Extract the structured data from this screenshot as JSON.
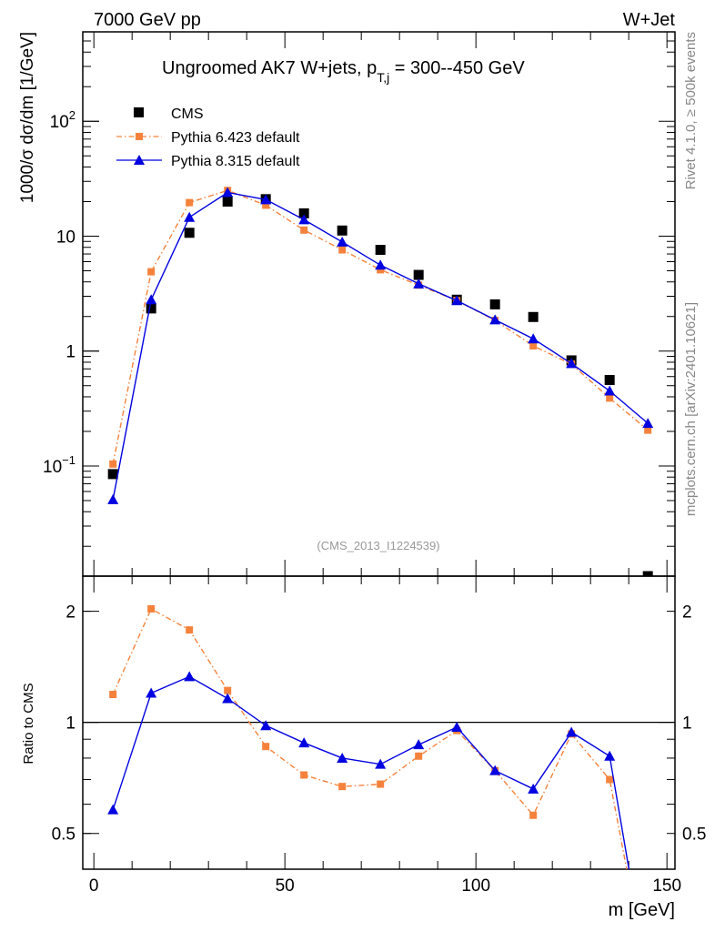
{
  "header": {
    "left": "7000 GeV pp",
    "right": "W+Jet"
  },
  "side_texts": {
    "rivet": "Rivet 4.1.0, ≥ 500k events",
    "mcplots": "mcplots.cern.ch [arXiv:2401.10621]"
  },
  "watermark": "(CMS_2013_I1224539)",
  "colors": {
    "cms": "#000000",
    "p6": "#f5823c",
    "p8": "#0000e0"
  },
  "chart_data": [
    {
      "type": "line",
      "panel": "main",
      "title": "Ungroomed AK7 W+jets, p",
      "title_sub": "T,j",
      "title_tail": " = 300--450 GeV",
      "ylabel": "1000/σ  dσ/dm [1/GeV]",
      "yscale": "log",
      "ylim": [
        0.011,
        600
      ],
      "xlim": [
        -2.9,
        152.1
      ],
      "yticks": [
        {
          "v": 0.1,
          "label": "10",
          "exp": "−1"
        },
        {
          "v": 1,
          "label": "1"
        },
        {
          "v": 10,
          "label": "10"
        },
        {
          "v": 100,
          "label": "10",
          "exp": "2"
        }
      ],
      "x": [
        5,
        15,
        25,
        35,
        45,
        55,
        65,
        75,
        85,
        95,
        105,
        115,
        125,
        135,
        145
      ],
      "legend_position": "top-left",
      "series": [
        {
          "name": "CMS",
          "key": "cms",
          "marker": "square",
          "values": [
            0.085,
            2.35,
            10.7,
            20,
            21,
            15.8,
            11.2,
            7.6,
            4.6,
            2.8,
            2.55,
            1.98,
            0.83,
            0.56,
            0.011
          ]
        },
        {
          "name": "Pythia 6.423 default",
          "key": "p6",
          "marker": "square",
          "line": "dashdot",
          "values": [
            0.104,
            4.9,
            19.6,
            25,
            18.6,
            11.3,
            7.6,
            5.1,
            3.75,
            2.75,
            1.85,
            1.11,
            0.77,
            0.39,
            0.205
          ]
        },
        {
          "name": "Pythia 8.315 default",
          "key": "p8",
          "marker": "triangle",
          "line": "solid",
          "values": [
            0.051,
            2.8,
            14.6,
            24,
            20.8,
            13.9,
            8.9,
            5.6,
            3.85,
            2.75,
            1.87,
            1.28,
            0.78,
            0.45,
            0.235
          ]
        }
      ]
    },
    {
      "type": "line",
      "panel": "ratio",
      "ylabel": "Ratio to CMS",
      "xlabel": "m [GeV]",
      "yscale": "log",
      "ylim": [
        0.4,
        2.49
      ],
      "xlim": [
        -2.9,
        152.1
      ],
      "yticks": [
        {
          "v": 0.5,
          "label": "0.5"
        },
        {
          "v": 1,
          "label": "1"
        },
        {
          "v": 2,
          "label": "2"
        }
      ],
      "xticks": [
        {
          "v": 0,
          "label": "0"
        },
        {
          "v": 50,
          "label": "50"
        },
        {
          "v": 100,
          "label": "100"
        },
        {
          "v": 150,
          "label": "150"
        }
      ],
      "x": [
        5,
        15,
        25,
        35,
        45,
        55,
        65,
        75,
        85,
        95,
        105,
        115,
        125,
        135,
        145
      ],
      "series": [
        {
          "name": "Pythia 6.423 default",
          "key": "p6",
          "values": [
            1.19,
            2.03,
            1.78,
            1.22,
            0.86,
            0.72,
            0.67,
            0.68,
            0.81,
            0.95,
            0.74,
            0.56,
            0.93,
            0.7,
            0.2
          ]
        },
        {
          "name": "Pythia 8.315 default",
          "key": "p8",
          "values": [
            0.58,
            1.2,
            1.33,
            1.16,
            0.98,
            0.88,
            0.8,
            0.77,
            0.87,
            0.97,
            0.74,
            0.66,
            0.94,
            0.81,
            0.2
          ]
        }
      ]
    }
  ]
}
